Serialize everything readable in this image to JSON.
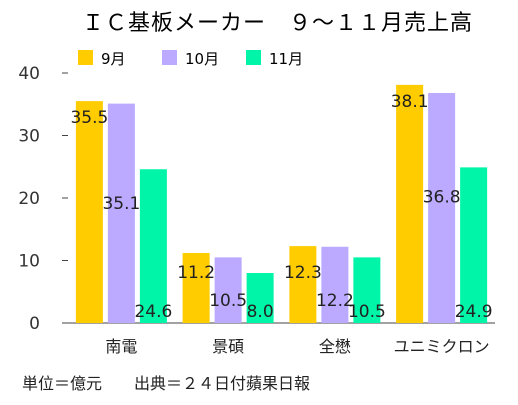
{
  "chart_data": {
    "type": "bar",
    "title": "ＩＣ基板メーカー　９～１１月売上高",
    "categories": [
      "南電",
      "景碩",
      "全懋",
      "ユニミクロン"
    ],
    "series": [
      {
        "name": "9月",
        "color": "#FFCC00",
        "values": [
          35.5,
          11.2,
          12.3,
          38.1
        ]
      },
      {
        "name": "10月",
        "color": "#BBAAFF",
        "values": [
          35.1,
          10.5,
          12.2,
          36.8
        ]
      },
      {
        "name": "11月",
        "color": "#00F5A8",
        "values": [
          24.6,
          8.0,
          10.5,
          24.9
        ]
      }
    ],
    "ylim": [
      0,
      40
    ],
    "yticks": [
      0,
      10,
      20,
      30,
      40
    ],
    "grid": false,
    "legend_position": "top-left",
    "footnote": "単位＝億元　　出典＝２４日付蘋果日報"
  }
}
